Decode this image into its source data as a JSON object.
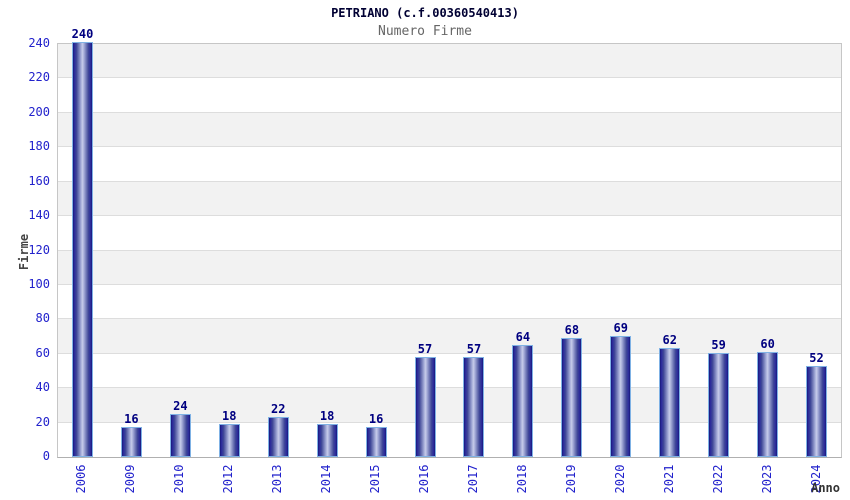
{
  "chart_data": {
    "type": "bar",
    "title": "PETRIANO (c.f.00360540413)",
    "subtitle": "Numero Firme",
    "xlabel": "Anno",
    "ylabel": "Firme",
    "categories": [
      "2006",
      "2009",
      "2010",
      "2012",
      "2013",
      "2014",
      "2015",
      "2016",
      "2017",
      "2018",
      "2019",
      "2020",
      "2021",
      "2022",
      "2023",
      "2024"
    ],
    "values": [
      240,
      16,
      24,
      18,
      22,
      18,
      16,
      57,
      57,
      64,
      68,
      69,
      62,
      59,
      60,
      52
    ],
    "ylim": [
      0,
      240
    ],
    "ytick_step": 20,
    "legend": "none",
    "grid": "horizontal-bands-alternating",
    "colors": {
      "tick_label": "#2222cc",
      "value_label": "#000080",
      "title": "#000033",
      "subtitle": "#666666",
      "axis_title": "#444444",
      "band_gray": "#f2f2f2",
      "band_white": "#ffffff",
      "gridline": "#dddddd",
      "plot_border": "#c6c6c6",
      "bar_border": "#7fb2e5",
      "bar_edge": "#16167a",
      "bar_center": "#c6cce9"
    }
  }
}
